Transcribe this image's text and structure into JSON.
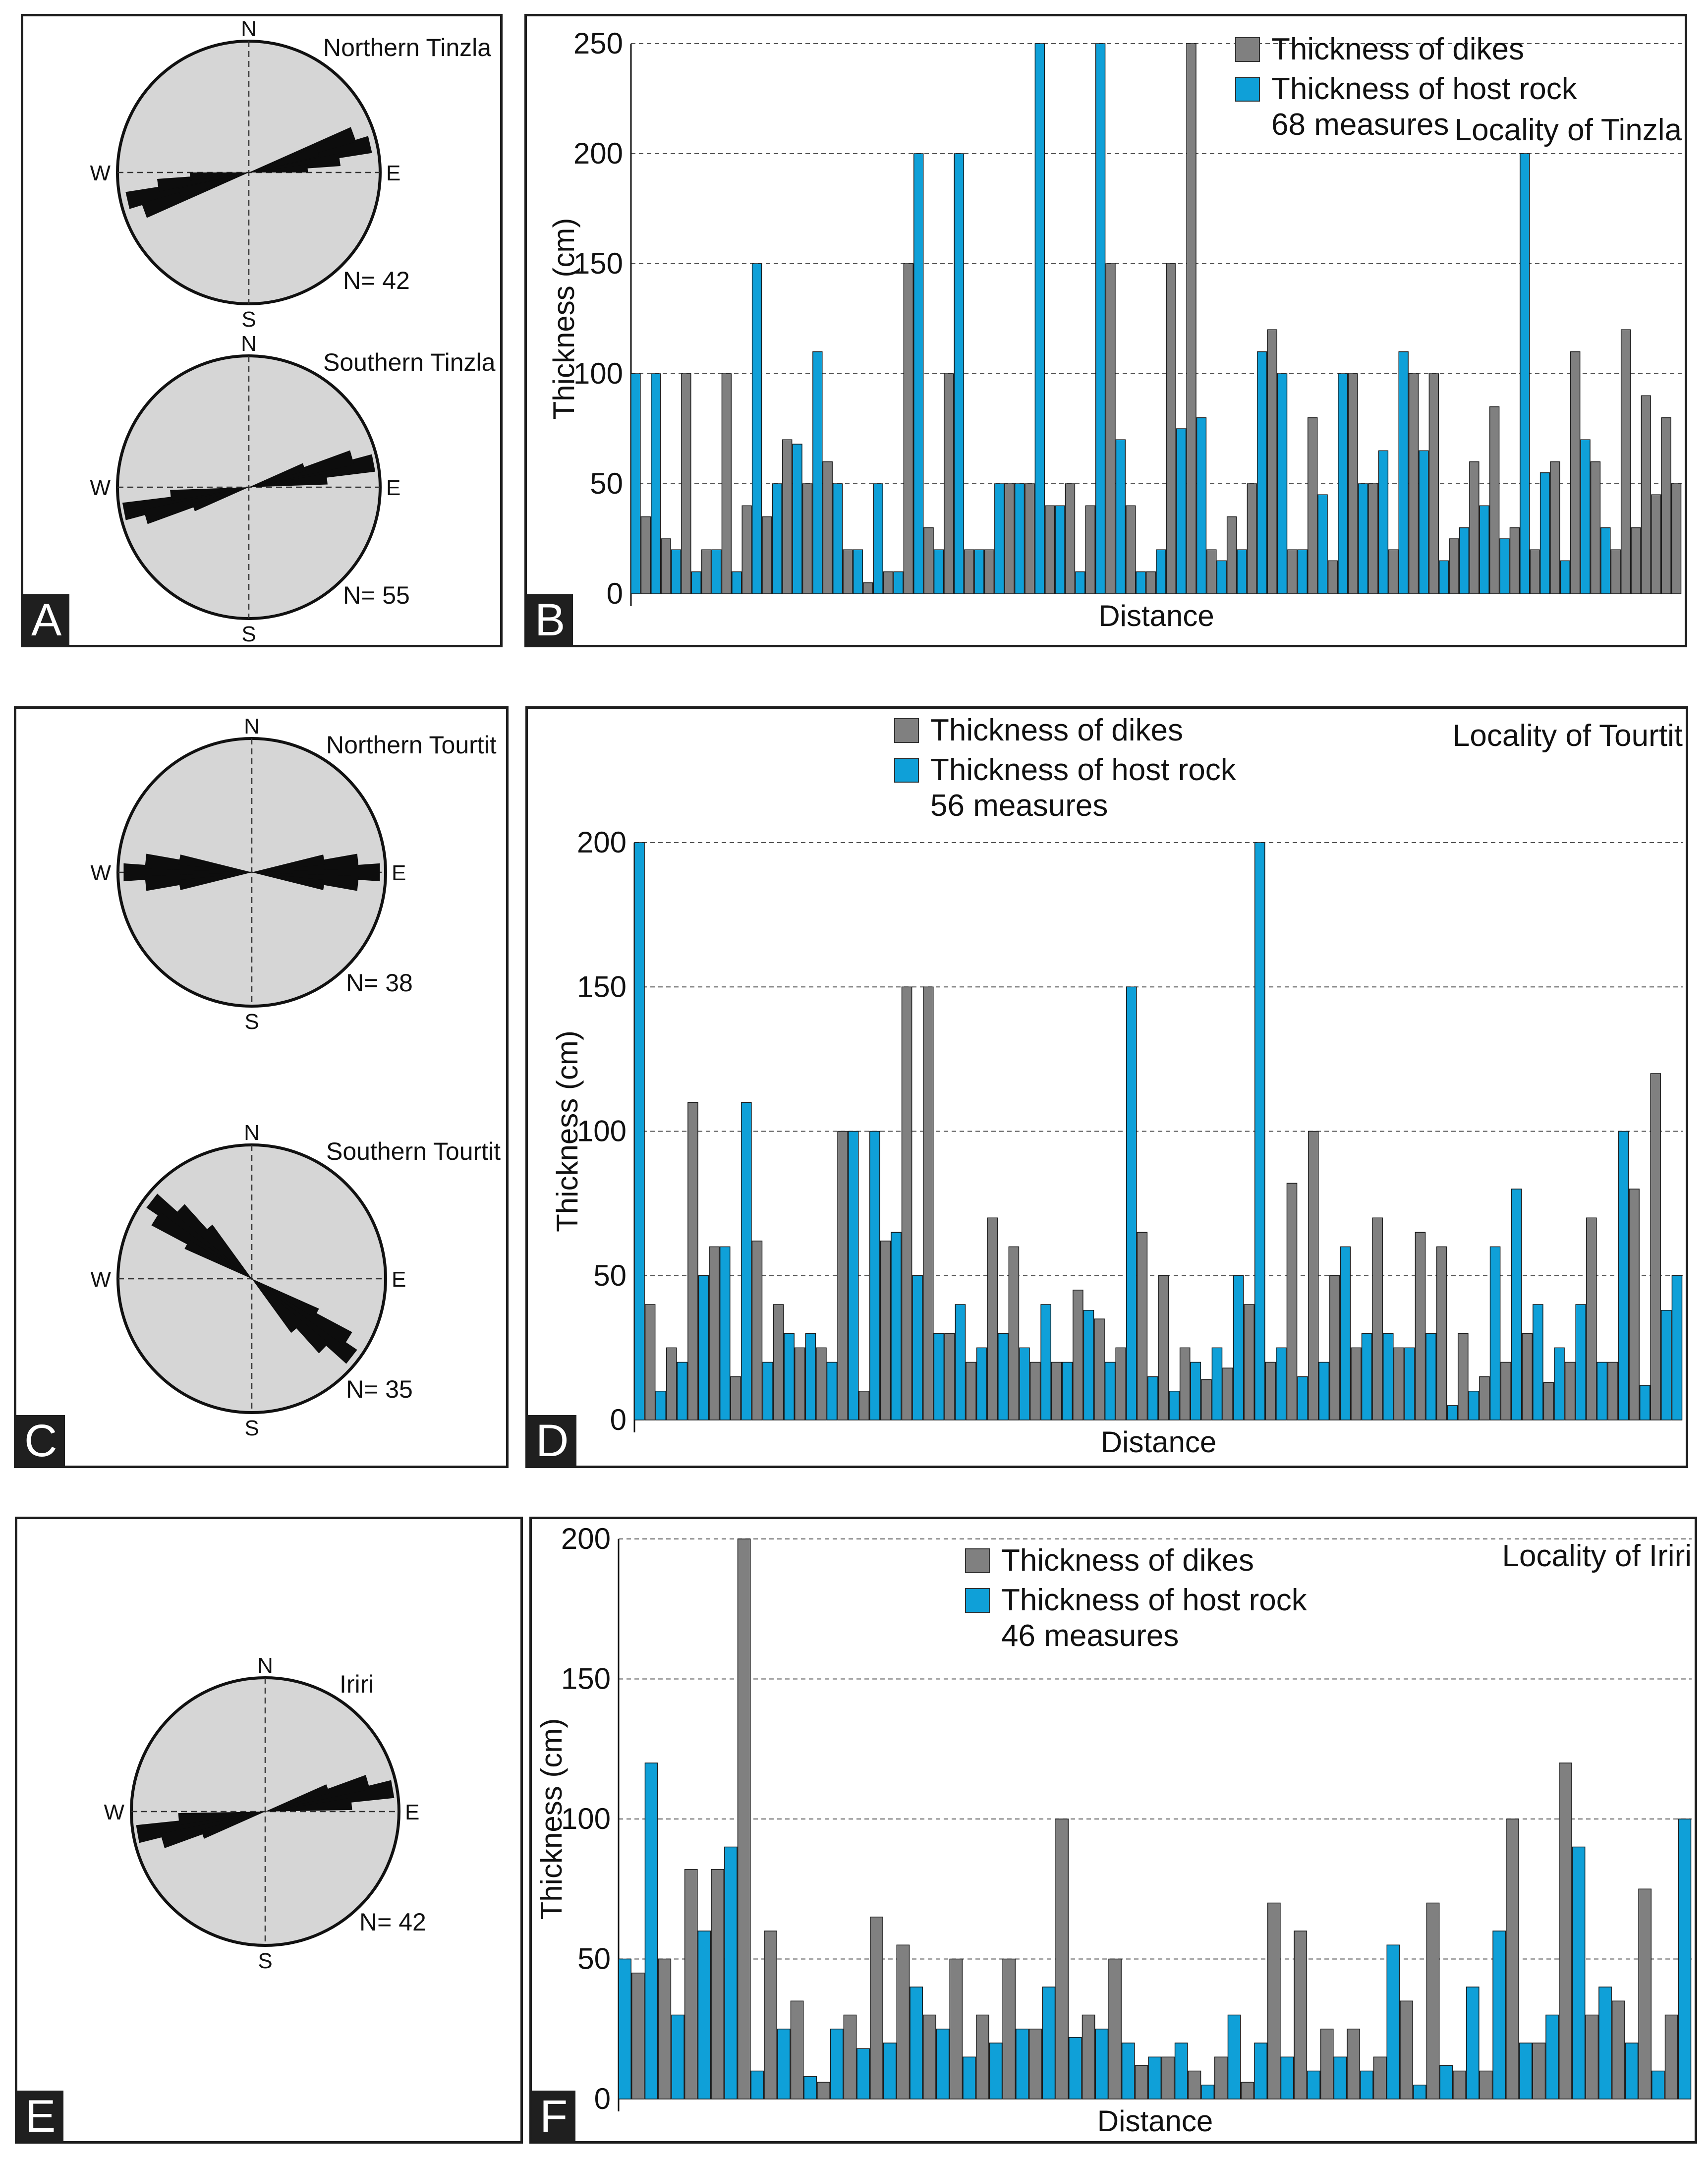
{
  "figure": {
    "panel_letters": [
      "A",
      "B",
      "C",
      "D",
      "E",
      "F"
    ],
    "cardinals": {
      "n": "N",
      "s": "S",
      "w": "W",
      "e": "E"
    }
  },
  "roses": [
    {
      "name": "Northern Tinzla",
      "n_label": "N= 42",
      "strike_deg": 77,
      "petals": [
        [
          77,
          0.95
        ],
        [
          70,
          0.85
        ],
        [
          82,
          0.7
        ],
        [
          73,
          0.55
        ],
        [
          86,
          0.45
        ]
      ]
    },
    {
      "name": "Southern Tinzla",
      "n_label": "N= 55",
      "strike_deg": 79,
      "petals": [
        [
          79,
          0.97
        ],
        [
          74,
          0.82
        ],
        [
          84,
          0.6
        ],
        [
          70,
          0.45
        ]
      ]
    },
    {
      "name": "Northern Tourtit",
      "n_label": "N= 38",
      "strike_deg": 90,
      "petals": [
        [
          90,
          0.96
        ],
        [
          84,
          0.8
        ],
        [
          96,
          0.8
        ],
        [
          80,
          0.55
        ],
        [
          100,
          0.55
        ]
      ]
    },
    {
      "name": "Southern Tourtit",
      "n_label": "N= 35",
      "strike_deg": 128,
      "petals": [
        [
          128,
          0.95
        ],
        [
          122,
          0.85
        ],
        [
          134,
          0.75
        ],
        [
          118,
          0.55
        ],
        [
          140,
          0.5
        ]
      ]
    },
    {
      "name": "Iriri",
      "n_label": "N= 42",
      "strike_deg": 80,
      "petals": [
        [
          80,
          0.97
        ],
        [
          74,
          0.8
        ],
        [
          85,
          0.65
        ],
        [
          70,
          0.5
        ]
      ]
    }
  ],
  "chart_data": [
    {
      "type": "bar",
      "panel": "B",
      "locality": "Locality of Tinzla",
      "measures_label": "68 measures",
      "xlabel": "Distance",
      "ylabel": "Thickness (cm)",
      "ylim": [
        0,
        250
      ],
      "yticks": [
        0,
        50,
        100,
        150,
        200,
        250
      ],
      "grid": "dashed horizontal",
      "legend": "top-right",
      "series": [
        {
          "name": "Thickness of dikes",
          "color": "#808080",
          "values": [
            35,
            25,
            100,
            20,
            100,
            40,
            35,
            70,
            50,
            60,
            20,
            5,
            10,
            150,
            30,
            100,
            20,
            20,
            50,
            50,
            40,
            50,
            40,
            150,
            40,
            10,
            150,
            250,
            20,
            35,
            50,
            120,
            20,
            80,
            15,
            100,
            50,
            20,
            100,
            100,
            25,
            60,
            85,
            30,
            20,
            60,
            110,
            60,
            20,
            120,
            30,
            90,
            45,
            80,
            50
          ]
        },
        {
          "name": "Thickness of host rock",
          "color": "#0fa0d8",
          "values": [
            100,
            100,
            20,
            10,
            20,
            10,
            150,
            50,
            68,
            110,
            50,
            20,
            50,
            10,
            200,
            20,
            200,
            20,
            50,
            50,
            250,
            40,
            10,
            250,
            70,
            10,
            20,
            75,
            80,
            15,
            20,
            110,
            100,
            20,
            45,
            100,
            50,
            65,
            110,
            65,
            15,
            30,
            40,
            25,
            200,
            55,
            15,
            70,
            30
          ]
        }
      ]
    },
    {
      "type": "bar",
      "panel": "D",
      "locality": "Locality of Tourtit",
      "measures_label": "56 measures",
      "xlabel": "Distance",
      "ylabel": "Thickness (cm)",
      "ylim": [
        0,
        200
      ],
      "yticks": [
        0,
        50,
        100,
        150,
        200
      ],
      "grid": "dashed horizontal",
      "legend": "top-center",
      "series": [
        {
          "name": "Thickness of dikes",
          "color": "#808080",
          "values": [
            40,
            25,
            110,
            60,
            15,
            62,
            40,
            25,
            25,
            100,
            10,
            62,
            150,
            150,
            30,
            20,
            70,
            60,
            20,
            20,
            45,
            35,
            25,
            65,
            50,
            25,
            14,
            18,
            40,
            20,
            82,
            100,
            50,
            25,
            70,
            25,
            65,
            60,
            30,
            15,
            20,
            30,
            13,
            20,
            70,
            20,
            80,
            120
          ]
        },
        {
          "name": "Thickness of host rock",
          "color": "#0fa0d8",
          "values": [
            200,
            10,
            20,
            50,
            60,
            110,
            20,
            30,
            30,
            20,
            100,
            100,
            65,
            50,
            30,
            40,
            25,
            30,
            25,
            40,
            20,
            38,
            20,
            150,
            15,
            10,
            20,
            25,
            50,
            200,
            25,
            15,
            20,
            60,
            30,
            30,
            25,
            30,
            5,
            10,
            60,
            80,
            40,
            25,
            40,
            20,
            100,
            12,
            38,
            50
          ]
        }
      ]
    },
    {
      "type": "bar",
      "panel": "F",
      "locality": "Locality of Iriri",
      "measures_label": "46 measures",
      "xlabel": "Distance",
      "ylabel": "Thickness (cm)",
      "ylim": [
        0,
        200
      ],
      "yticks": [
        0,
        50,
        100,
        150,
        200
      ],
      "grid": "dashed horizontal",
      "legend": "top-center",
      "series": [
        {
          "name": "Thickness of dikes",
          "color": "#808080",
          "values": [
            45,
            50,
            82,
            82,
            200,
            60,
            35,
            6,
            30,
            65,
            55,
            30,
            50,
            30,
            50,
            25,
            100,
            30,
            50,
            12,
            15,
            10,
            15,
            6,
            70,
            60,
            25,
            25,
            15,
            35,
            70,
            10,
            10,
            100,
            20,
            120,
            30,
            35,
            75,
            30
          ]
        },
        {
          "name": "Thickness of host rock",
          "color": "#0fa0d8",
          "values": [
            50,
            120,
            30,
            60,
            90,
            10,
            25,
            8,
            25,
            18,
            20,
            40,
            25,
            15,
            20,
            25,
            40,
            22,
            25,
            20,
            15,
            20,
            5,
            30,
            20,
            15,
            10,
            15,
            10,
            55,
            5,
            12,
            40,
            60,
            20,
            30,
            90,
            40,
            20,
            10,
            100
          ]
        }
      ]
    }
  ]
}
